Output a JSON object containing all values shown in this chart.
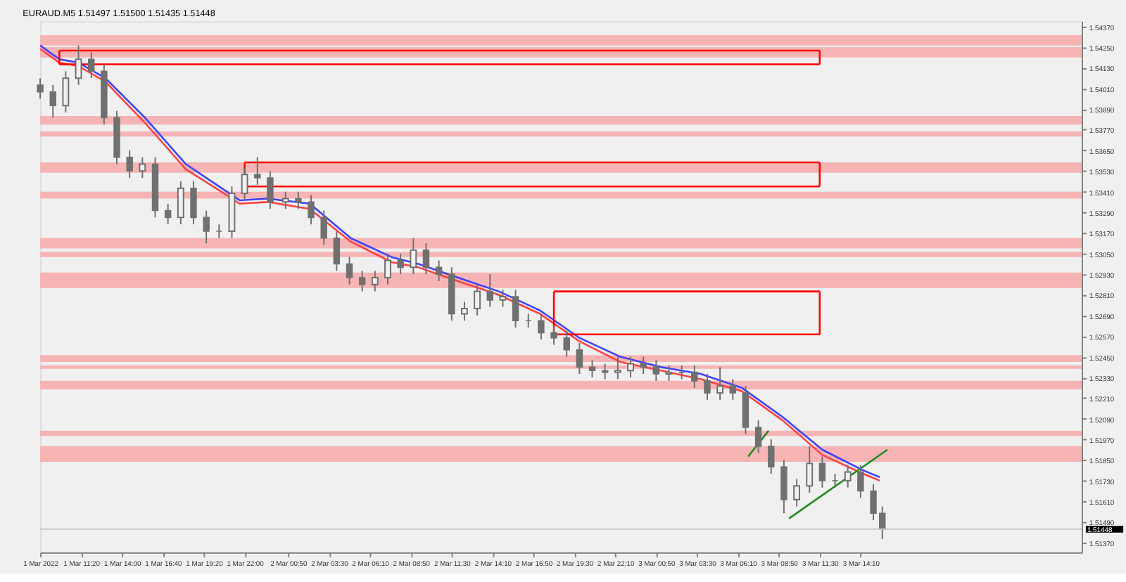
{
  "chart_data": {
    "type": "candlestick",
    "title": "EURAUD.M5  1.51497 1.51500 1.51435 1.51448",
    "color": "#707070",
    "x": [
      "2022-03-01T08:40",
      "2022-03-01T09:30",
      "2022-03-01T10:20",
      "2022-03-01T11:10",
      "2022-03-01T12:00",
      "2022-03-01T12:50",
      "2022-03-01T13:40",
      "2022-03-01T14:30",
      "2022-03-01T15:20",
      "2022-03-01T16:10",
      "2022-03-01T17:00",
      "2022-03-01T17:50",
      "2022-03-01T18:40",
      "2022-03-01T19:30",
      "2022-03-01T20:20",
      "2022-03-01T21:10",
      "2022-03-01T22:00",
      "2022-03-01T22:50",
      "2022-03-01T23:40",
      "2022-03-02T00:40",
      "2022-03-02T01:30",
      "2022-03-02T02:20",
      "2022-03-02T03:10",
      "2022-03-02T04:00",
      "2022-03-02T04:50",
      "2022-03-02T05:40",
      "2022-03-02T06:30",
      "2022-03-02T07:20",
      "2022-03-02T08:10",
      "2022-03-02T09:00",
      "2022-03-02T09:50",
      "2022-03-02T10:40",
      "2022-03-02T11:30",
      "2022-03-02T12:20",
      "2022-03-02T13:10",
      "2022-03-02T14:00",
      "2022-03-02T14:50",
      "2022-03-02T15:40",
      "2022-03-02T16:30",
      "2022-03-02T17:20",
      "2022-03-02T18:10",
      "2022-03-02T19:00",
      "2022-03-02T19:50",
      "2022-03-02T20:40",
      "2022-03-02T21:30",
      "2022-03-02T22:20",
      "2022-03-02T23:10",
      "2022-03-03T00:00",
      "2022-03-03T00:50",
      "2022-03-03T01:40",
      "2022-03-03T02:30",
      "2022-03-03T03:20",
      "2022-03-03T04:10",
      "2022-03-03T05:00",
      "2022-03-03T05:50",
      "2022-03-03T06:40",
      "2022-03-03T07:30",
      "2022-03-03T08:20",
      "2022-03-03T09:10",
      "2022-03-03T10:00",
      "2022-03-03T10:50",
      "2022-03-03T11:40",
      "2022-03-03T12:30",
      "2022-03-03T13:20",
      "2022-03-03T14:10",
      "2022-03-03T15:00",
      "2022-03-03T15:35"
    ],
    "ohlc": [
      [
        1.5403,
        1.5407,
        1.5395,
        1.5399
      ],
      [
        1.5399,
        1.5403,
        1.5384,
        1.5391
      ],
      [
        1.5391,
        1.5411,
        1.5387,
        1.5407
      ],
      [
        1.5407,
        1.5426,
        1.5403,
        1.5418
      ],
      [
        1.5418,
        1.5422,
        1.5407,
        1.5411
      ],
      [
        1.5411,
        1.5415,
        1.538,
        1.5384
      ],
      [
        1.5384,
        1.5388,
        1.5357,
        1.5361
      ],
      [
        1.5361,
        1.5365,
        1.5349,
        1.5353
      ],
      [
        1.5353,
        1.5361,
        1.5349,
        1.5357
      ],
      [
        1.5357,
        1.5361,
        1.5326,
        1.533
      ],
      [
        1.533,
        1.5334,
        1.5322,
        1.5326
      ],
      [
        1.5326,
        1.5347,
        1.5322,
        1.5343
      ],
      [
        1.5343,
        1.5347,
        1.5322,
        1.5326
      ],
      [
        1.5326,
        1.533,
        1.5311,
        1.5318
      ],
      [
        1.5318,
        1.5322,
        1.5314,
        1.5318
      ],
      [
        1.5318,
        1.5344,
        1.5314,
        1.534
      ],
      [
        1.534,
        1.5355,
        1.5336,
        1.5351
      ],
      [
        1.5351,
        1.5361,
        1.5345,
        1.5349
      ],
      [
        1.5349,
        1.5353,
        1.5331,
        1.5335
      ],
      [
        1.5335,
        1.5341,
        1.5331,
        1.5337
      ],
      [
        1.5337,
        1.5341,
        1.5331,
        1.5335
      ],
      [
        1.5335,
        1.5339,
        1.5322,
        1.5326
      ],
      [
        1.5326,
        1.533,
        1.531,
        1.5314
      ],
      [
        1.5314,
        1.5318,
        1.5295,
        1.5299
      ],
      [
        1.5299,
        1.5303,
        1.5287,
        1.5291
      ],
      [
        1.5291,
        1.5295,
        1.5283,
        1.5287
      ],
      [
        1.5287,
        1.5295,
        1.5283,
        1.5291
      ],
      [
        1.5291,
        1.5305,
        1.5287,
        1.5301
      ],
      [
        1.5301,
        1.5305,
        1.5293,
        1.5297
      ],
      [
        1.5297,
        1.5314,
        1.5293,
        1.5307
      ],
      [
        1.5307,
        1.5311,
        1.5293,
        1.5297
      ],
      [
        1.5297,
        1.5301,
        1.5289,
        1.5293
      ],
      [
        1.5293,
        1.5297,
        1.5266,
        1.527
      ],
      [
        1.527,
        1.5277,
        1.5266,
        1.5273
      ],
      [
        1.5273,
        1.5287,
        1.5269,
        1.5283
      ],
      [
        1.5283,
        1.5293,
        1.5274,
        1.5278
      ],
      [
        1.5278,
        1.5284,
        1.5274,
        1.528
      ],
      [
        1.528,
        1.5284,
        1.5262,
        1.5266
      ],
      [
        1.5266,
        1.527,
        1.5262,
        1.5266
      ],
      [
        1.5266,
        1.527,
        1.5255,
        1.5259
      ],
      [
        1.5259,
        1.5263,
        1.5252,
        1.5256
      ],
      [
        1.5256,
        1.526,
        1.5245,
        1.5249
      ],
      [
        1.5249,
        1.5253,
        1.5235,
        1.5239
      ],
      [
        1.5239,
        1.5243,
        1.5233,
        1.5237
      ],
      [
        1.5237,
        1.5241,
        1.5232,
        1.5236
      ],
      [
        1.5236,
        1.5245,
        1.5232,
        1.5237
      ],
      [
        1.5237,
        1.5245,
        1.5233,
        1.5241
      ],
      [
        1.5241,
        1.5245,
        1.5235,
        1.5239
      ],
      [
        1.5239,
        1.5243,
        1.5231,
        1.5235
      ],
      [
        1.5235,
        1.524,
        1.5231,
        1.5236
      ],
      [
        1.5236,
        1.524,
        1.5232,
        1.5236
      ],
      [
        1.5236,
        1.524,
        1.5227,
        1.5231
      ],
      [
        1.5231,
        1.5235,
        1.522,
        1.5224
      ],
      [
        1.5224,
        1.5239,
        1.522,
        1.5228
      ],
      [
        1.5228,
        1.5232,
        1.522,
        1.5224
      ],
      [
        1.5224,
        1.5228,
        1.52,
        1.5204
      ],
      [
        1.5204,
        1.5208,
        1.5189,
        1.5193
      ],
      [
        1.5193,
        1.5197,
        1.5177,
        1.5181
      ],
      [
        1.5181,
        1.5185,
        1.5154,
        1.5162
      ],
      [
        1.5162,
        1.5174,
        1.5158,
        1.517
      ],
      [
        1.517,
        1.5193,
        1.5166,
        1.5183
      ],
      [
        1.5183,
        1.5187,
        1.5169,
        1.5173
      ],
      [
        1.5173,
        1.5177,
        1.5169,
        1.5173
      ],
      [
        1.5173,
        1.5182,
        1.5169,
        1.5178
      ],
      [
        1.5178,
        1.5182,
        1.5163,
        1.5167
      ],
      [
        1.5167,
        1.5171,
        1.515,
        1.5154
      ],
      [
        1.5154,
        1.5158,
        1.5139,
        1.51448
      ]
    ],
    "series": [
      {
        "type": "line",
        "color": "#4040ff",
        "x": [
          "2022-03-01T08:40",
          "2022-03-01T09:55",
          "2022-03-01T11:10",
          "2022-03-01T12:55",
          "2022-03-01T15:30",
          "2022-03-01T18:10",
          "2022-03-01T20:50",
          "2022-03-01T21:40",
          "2022-03-01T23:30",
          "2022-03-02T02:15",
          "2022-03-02T04:55",
          "2022-03-02T07:35",
          "2022-03-02T09:20",
          "2022-03-02T11:55",
          "2022-03-02T14:35",
          "2022-03-02T17:15",
          "2022-03-02T19:50",
          "2022-03-02T22:30",
          "2022-03-03T01:10",
          "2022-03-03T03:45",
          "2022-03-03T06:25",
          "2022-03-03T09:05",
          "2022-03-03T11:40",
          "2022-03-03T14:20",
          "2022-03-03T15:25"
        ],
        "values": [
          1.5426,
          1.5418,
          1.5416,
          1.5407,
          1.5384,
          1.5357,
          1.5341,
          1.5336,
          1.5337,
          1.5334,
          1.5314,
          1.5303,
          1.5299,
          1.5291,
          1.5283,
          1.5272,
          1.5256,
          1.5245,
          1.5239,
          1.5235,
          1.5227,
          1.521,
          1.5191,
          1.5179,
          1.5175
        ]
      },
      {
        "type": "line",
        "color": "#ff4040",
        "x": [
          "2022-03-01T08:40",
          "2022-03-01T09:55",
          "2022-03-01T11:10",
          "2022-03-01T12:55",
          "2022-03-01T15:30",
          "2022-03-01T18:10",
          "2022-03-01T20:50",
          "2022-03-01T21:40",
          "2022-03-01T23:30",
          "2022-03-02T02:15",
          "2022-03-02T04:55",
          "2022-03-02T07:35",
          "2022-03-02T09:20",
          "2022-03-02T11:55",
          "2022-03-02T14:35",
          "2022-03-02T17:15",
          "2022-03-02T19:50",
          "2022-03-02T22:30",
          "2022-03-03T01:10",
          "2022-03-03T03:45",
          "2022-03-03T06:25",
          "2022-03-03T09:05",
          "2022-03-03T11:40",
          "2022-03-03T14:20",
          "2022-03-03T15:25"
        ],
        "values": [
          1.5424,
          1.5416,
          1.5414,
          1.5405,
          1.5381,
          1.5354,
          1.5339,
          1.5334,
          1.5335,
          1.5331,
          1.5312,
          1.53,
          1.5297,
          1.5289,
          1.5281,
          1.527,
          1.5254,
          1.5242,
          1.5237,
          1.5232,
          1.5225,
          1.5208,
          1.5188,
          1.5177,
          1.5173
        ]
      },
      {
        "type": "line",
        "color": "#ff0000",
        "x": [
          "2022-03-01T09:55",
          "2022-03-03T11:30"
        ],
        "values": [
          1.5423,
          1.5423
        ]
      },
      {
        "type": "line",
        "color": "#ff0000",
        "x": [
          "2022-03-01T09:55",
          "2022-03-03T11:30"
        ],
        "values": [
          1.5415,
          1.5415
        ]
      },
      {
        "type": "line",
        "color": "#ff0000",
        "x": [
          "2022-03-01T22:00",
          "2022-03-03T11:30"
        ],
        "values": [
          1.5358,
          1.5358
        ]
      },
      {
        "type": "line",
        "color": "#ff0000",
        "x": [
          "2022-03-01T22:00",
          "2022-03-03T11:30"
        ],
        "values": [
          1.5344,
          1.5344
        ]
      },
      {
        "type": "line",
        "color": "#ff0000",
        "x": [
          "2022-03-02T18:10",
          "2022-03-03T11:30"
        ],
        "values": [
          1.5283,
          1.5283
        ]
      },
      {
        "type": "line",
        "color": "#ff0000",
        "x": [
          "2022-03-02T18:10",
          "2022-03-03T11:30"
        ],
        "values": [
          1.5258,
          1.5258
        ]
      },
      {
        "type": "line",
        "color": "#1e8c1e",
        "x": [
          "2022-03-03T09:30",
          "2022-03-03T15:55"
        ],
        "values": [
          1.5151,
          1.5191
        ]
      },
      {
        "type": "line",
        "color": "#1e8c1e",
        "x": [
          "2022-03-03T06:50",
          "2022-03-03T08:10"
        ],
        "values": [
          1.5187,
          1.5202
        ]
      }
    ],
    "bands": [
      {
        "axis": "y",
        "from": 1.5426,
        "to": 1.5432,
        "color": "#f7b4b4"
      },
      {
        "axis": "y",
        "from": 1.5419,
        "to": 1.5425,
        "color": "#f7b4b4"
      },
      {
        "axis": "y",
        "from": 1.538,
        "to": 1.5385,
        "color": "#f7b4b4"
      },
      {
        "axis": "y",
        "from": 1.5373,
        "to": 1.5376,
        "color": "#f7b4b4"
      },
      {
        "axis": "y",
        "from": 1.5352,
        "to": 1.5358,
        "color": "#f7b4b4"
      },
      {
        "axis": "y",
        "from": 1.5337,
        "to": 1.5341,
        "color": "#f7b4b4"
      },
      {
        "axis": "y",
        "from": 1.5308,
        "to": 1.5314,
        "color": "#f7b4b4"
      },
      {
        "axis": "y",
        "from": 1.5303,
        "to": 1.5306,
        "color": "#f7b4b4"
      },
      {
        "axis": "y",
        "from": 1.5285,
        "to": 1.5294,
        "color": "#f7b4b4"
      },
      {
        "axis": "y",
        "from": 1.5242,
        "to": 1.5246,
        "color": "#f7b4b4"
      },
      {
        "axis": "y",
        "from": 1.5238,
        "to": 1.524,
        "color": "#f7b4b4"
      },
      {
        "axis": "y",
        "from": 1.5226,
        "to": 1.5231,
        "color": "#f7b4b4"
      },
      {
        "axis": "y",
        "from": 1.5199,
        "to": 1.5202,
        "color": "#f7b4b4"
      },
      {
        "axis": "y",
        "from": 1.5184,
        "to": 1.5193,
        "color": "#f7b4b4"
      }
    ],
    "ref_lines": [
      {
        "axis": "y",
        "value": 1.51448,
        "label": "1.51448",
        "color": "#c8c8c8"
      }
    ],
    "xlim": [
      "2022-03-01T08:40",
      "2022-03-04T04:35"
    ],
    "xticks": [
      {
        "value": "2022-03-01T08:40",
        "label": "1 Mar 2022"
      },
      {
        "value": "2022-03-01T11:20",
        "label": "1 Mar 11:20"
      },
      {
        "value": "2022-03-01T14:00",
        "label": "1 Mar 14:00"
      },
      {
        "value": "2022-03-01T16:40",
        "label": "1 Mar 16:40"
      },
      {
        "value": "2022-03-01T19:20",
        "label": "1 Mar 19:20"
      },
      {
        "value": "2022-03-01T22:00",
        "label": "1 Mar 22:00"
      },
      {
        "value": "2022-03-02T00:50",
        "label": "2 Mar 00:50"
      },
      {
        "value": "2022-03-02T03:30",
        "label": "2 Mar 03:30"
      },
      {
        "value": "2022-03-02T06:10",
        "label": "2 Mar 06:10"
      },
      {
        "value": "2022-03-02T08:50",
        "label": "2 Mar 08:50"
      },
      {
        "value": "2022-03-02T11:30",
        "label": "2 Mar 11:30"
      },
      {
        "value": "2022-03-02T14:10",
        "label": "2 Mar 14:10"
      },
      {
        "value": "2022-03-02T16:50",
        "label": "2 Mar 16:50"
      },
      {
        "value": "2022-03-02T19:30",
        "label": "2 Mar 19:30"
      },
      {
        "value": "2022-03-02T22:10",
        "label": "2 Mar 22:10"
      },
      {
        "value": "2022-03-03T00:50",
        "label": "3 Mar 00:50"
      },
      {
        "value": "2022-03-03T03:30",
        "label": "3 Mar 03:30"
      },
      {
        "value": "2022-03-03T06:10",
        "label": "3 Mar 06:10"
      },
      {
        "value": "2022-03-03T08:50",
        "label": "3 Mar 08:50"
      },
      {
        "value": "2022-03-03T11:30",
        "label": "3 Mar 11:30"
      },
      {
        "value": "2022-03-03T14:10",
        "label": "3 Mar 14:10"
      }
    ],
    "ylim": [
      1.51313,
      1.54401
    ],
    "yticks": [
      {
        "value": 1.5437,
        "label": "1.54370"
      },
      {
        "value": 1.5425,
        "label": "1.54250"
      },
      {
        "value": 1.5413,
        "label": "1.54130"
      },
      {
        "value": 1.5401,
        "label": "1.54010"
      },
      {
        "value": 1.5389,
        "label": "1.53890"
      },
      {
        "value": 1.5377,
        "label": "1.53770"
      },
      {
        "value": 1.5365,
        "label": "1.53650"
      },
      {
        "value": 1.5353,
        "label": "1.53530"
      },
      {
        "value": 1.5341,
        "label": "1.53410"
      },
      {
        "value": 1.5329,
        "label": "1.53290"
      },
      {
        "value": 1.5317,
        "label": "1.53170"
      },
      {
        "value": 1.5305,
        "label": "1.53050"
      },
      {
        "value": 1.5293,
        "label": "1.52930"
      },
      {
        "value": 1.5281,
        "label": "1.52810"
      },
      {
        "value": 1.5269,
        "label": "1.52690"
      },
      {
        "value": 1.5257,
        "label": "1.52570"
      },
      {
        "value": 1.5245,
        "label": "1.52450"
      },
      {
        "value": 1.5233,
        "label": "1.52330"
      },
      {
        "value": 1.5221,
        "label": "1.52210"
      },
      {
        "value": 1.5209,
        "label": "1.52090"
      },
      {
        "value": 1.5197,
        "label": "1.51970"
      },
      {
        "value": 1.5185,
        "label": "1.51850"
      },
      {
        "value": 1.5173,
        "label": "1.51730"
      },
      {
        "value": 1.5161,
        "label": "1.51610"
      },
      {
        "value": 1.5149,
        "label": "1.51490"
      },
      {
        "value": 1.5137,
        "label": "1.51370"
      }
    ],
    "grid": false
  }
}
